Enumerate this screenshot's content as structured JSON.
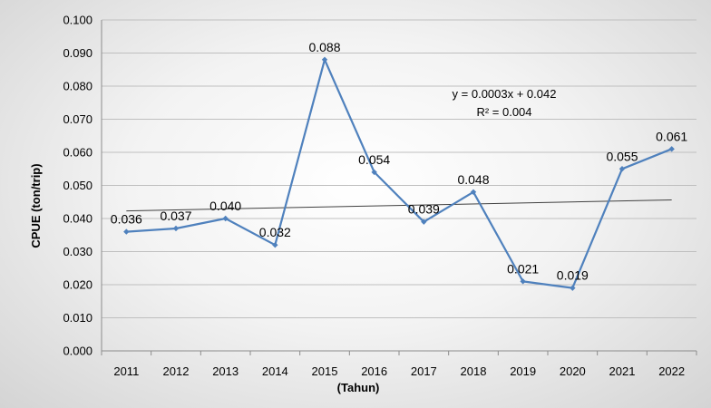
{
  "chart_data": {
    "type": "line",
    "title": "",
    "xlabel": "(Tahun)",
    "ylabel": "CPUE (ton/trip)",
    "categories": [
      "2011",
      "2012",
      "2013",
      "2014",
      "2015",
      "2016",
      "2017",
      "2018",
      "2019",
      "2020",
      "2021",
      "2022"
    ],
    "series": [
      {
        "values": [
          0.036,
          0.037,
          0.04,
          0.032,
          0.088,
          0.054,
          0.039,
          0.048,
          0.021,
          0.019,
          0.055,
          0.061
        ],
        "data_labels": [
          "0.036",
          "0.037",
          "0.040",
          "0.032",
          "0.088",
          "0.054",
          "0.039",
          "0.048",
          "0.021",
          "0.019",
          "0.055",
          "0.061"
        ],
        "color": "#4f81bd"
      }
    ],
    "trendline": {
      "type": "linear",
      "slope": 0.0003,
      "intercept": 0.042,
      "equation": "y = 0.0003x + 0.042",
      "r_squared": "R² = 0.004",
      "color": "#404040"
    },
    "ylim": [
      0,
      0.1
    ],
    "yticks": [
      0.0,
      0.01,
      0.02,
      0.03,
      0.04,
      0.05,
      0.06,
      0.07,
      0.08,
      0.09,
      0.1
    ],
    "ytick_labels": [
      "0.000",
      "0.010",
      "0.020",
      "0.030",
      "0.040",
      "0.050",
      "0.060",
      "0.070",
      "0.080",
      "0.090",
      "0.100"
    ],
    "grid": true,
    "legend": "none",
    "gridline_color": "#bfbfbf"
  }
}
